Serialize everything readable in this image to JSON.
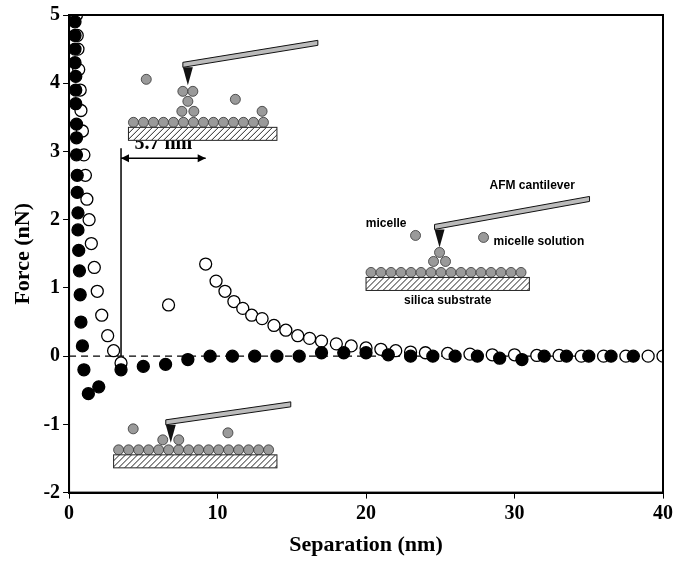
{
  "chart_data": {
    "type": "scatter",
    "x_label": "Separation (nm)",
    "y_label": "Force (nN)",
    "xlim": [
      0,
      40
    ],
    "xticks": [
      0,
      10,
      20,
      30,
      40
    ],
    "ylim": [
      -2,
      5
    ],
    "yticks": [
      -2,
      -1,
      0,
      1,
      2,
      3,
      4,
      5
    ],
    "grid": false,
    "series": [
      {
        "color": "#000000",
        "marker": "filled_circle",
        "x": [
          0.4,
          0.4,
          0.4,
          0.4,
          0.45,
          0.45,
          0.45,
          0.5,
          0.5,
          0.5,
          0.55,
          0.55,
          0.6,
          0.6,
          0.65,
          0.7,
          0.75,
          0.8,
          0.9,
          1.0,
          1.3,
          2.0,
          3.5,
          5,
          6.5,
          8,
          9.5,
          11,
          12.5,
          14,
          15.5,
          17,
          18.5,
          20,
          21.5,
          23,
          24.5,
          26,
          27.5,
          29,
          30.5,
          32,
          33.5,
          35,
          36.5,
          38
        ],
        "values": [
          4.9,
          4.7,
          4.5,
          4.3,
          4.1,
          3.9,
          3.7,
          3.4,
          3.2,
          2.95,
          2.65,
          2.4,
          2.1,
          1.85,
          1.55,
          1.25,
          0.9,
          0.5,
          0.15,
          -0.2,
          -0.55,
          -0.45,
          -0.2,
          -0.15,
          -0.12,
          -0.05,
          0,
          0,
          0,
          0,
          0,
          0.05,
          0.05,
          0.05,
          0.02,
          0,
          0,
          0,
          0,
          -0.03,
          -0.05,
          0,
          0,
          0,
          0,
          0
        ]
      },
      {
        "color": "#000000",
        "marker": "open_circle",
        "x": [
          0.5,
          0.55,
          0.6,
          0.65,
          0.75,
          0.8,
          0.9,
          1.0,
          1.1,
          1.2,
          1.35,
          1.5,
          1.7,
          1.9,
          2.2,
          2.6,
          3.0,
          3.5,
          6.7,
          9.2,
          9.9,
          10.5,
          11.1,
          11.7,
          12.3,
          13,
          13.8,
          14.6,
          15.4,
          16.2,
          17,
          18,
          19,
          20,
          21,
          22,
          23,
          24,
          25.5,
          27,
          28.5,
          30,
          31.5,
          33,
          34.5,
          36,
          37.5,
          39,
          40
        ],
        "values": [
          5.0,
          4.7,
          4.5,
          4.2,
          3.9,
          3.6,
          3.3,
          2.95,
          2.65,
          2.3,
          2.0,
          1.65,
          1.3,
          0.95,
          0.6,
          0.3,
          0.08,
          -0.1,
          0.75,
          1.35,
          1.1,
          0.95,
          0.8,
          0.7,
          0.6,
          0.55,
          0.45,
          0.38,
          0.3,
          0.26,
          0.22,
          0.18,
          0.15,
          0.12,
          0.1,
          0.08,
          0.06,
          0.05,
          0.04,
          0.03,
          0.02,
          0.02,
          0.01,
          0.01,
          0,
          0,
          0,
          0,
          0
        ]
      }
    ],
    "hlines": [
      {
        "y": 0,
        "line_style": "dashed"
      }
    ],
    "annotations": [
      {
        "text": "5.7 nm",
        "x_start": 3.5,
        "x_end": 9.2,
        "y": 2.9
      }
    ],
    "diagram_labels": {
      "cantilever": "AFM cantilever",
      "micelle": "micelle",
      "solution": "micelle solution",
      "substrate": "silica substrate"
    }
  }
}
